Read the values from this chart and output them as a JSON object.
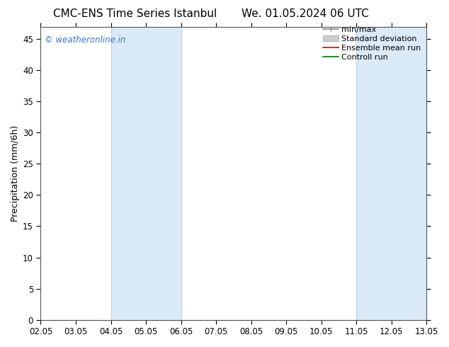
{
  "title_left": "CMC-ENS Time Series Istanbul",
  "title_right": "We. 01.05.2024 06 UTC",
  "ylabel": "Precipitation (mm/6h)",
  "xlim_min": 0,
  "xlim_max": 11,
  "ylim_min": 0,
  "ylim_max": 47,
  "yticks": [
    0,
    5,
    10,
    15,
    20,
    25,
    30,
    35,
    40,
    45
  ],
  "xtick_labels": [
    "02.05",
    "03.05",
    "04.05",
    "05.05",
    "06.05",
    "07.05",
    "08.05",
    "09.05",
    "10.05",
    "11.05",
    "12.05",
    "13.05"
  ],
  "xtick_positions": [
    0,
    1,
    2,
    3,
    4,
    5,
    6,
    7,
    8,
    9,
    10,
    11
  ],
  "shaded_bands": [
    {
      "x_start": 2,
      "x_end": 4,
      "color": "#daeaf7"
    },
    {
      "x_start": 9,
      "x_end": 11,
      "color": "#daeaf7"
    }
  ],
  "band_border_color": "#b8d4ea",
  "background_color": "#ffffff",
  "watermark_text": "© weatheronline.in",
  "watermark_color": "#3377cc",
  "title_fontsize": 11,
  "tick_fontsize": 8.5,
  "ylabel_fontsize": 9,
  "legend_fontsize": 8
}
